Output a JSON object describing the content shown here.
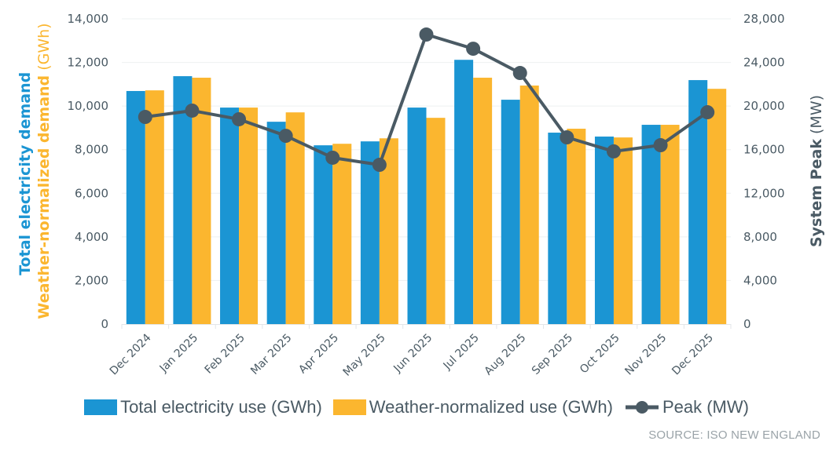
{
  "chart_data": {
    "type": "bar",
    "title": "",
    "categories": [
      "Dec 2024",
      "Jan 2025",
      "Feb 2025",
      "Mar 2025",
      "Apr 2025",
      "May 2025",
      "Jun 2025",
      "Jul 2025",
      "Aug 2025",
      "Sep 2025",
      "Oct 2025",
      "Nov 2025",
      "Dec 2025"
    ],
    "series": [
      {
        "name": "Total electricity use (GWh)",
        "type": "bar",
        "axis": "left",
        "color": "#1b95d3",
        "values": [
          10690,
          11370,
          9930,
          9280,
          8200,
          8380,
          9930,
          12120,
          10290,
          8780,
          8600,
          9140,
          11190
        ]
      },
      {
        "name": "Weather-normalized use (GWh)",
        "type": "bar",
        "axis": "left",
        "color": "#fbb62f",
        "values": [
          10720,
          11300,
          9930,
          9710,
          8270,
          8520,
          9460,
          11300,
          10940,
          8960,
          8560,
          9140,
          10790
        ]
      },
      {
        "name": "Peak (MW)",
        "type": "line",
        "axis": "right",
        "color": "#4a5a64",
        "values": [
          19000,
          19580,
          18790,
          17270,
          15260,
          14610,
          26560,
          25260,
          23030,
          17130,
          15840,
          16410,
          19430
        ]
      }
    ],
    "y_left": {
      "label_part1": "Total electricity demand",
      "label_part2": "Weather-normalized demand",
      "label_unit": " (GWh)",
      "ylim": [
        0,
        14000
      ],
      "ticks": [
        0,
        2000,
        4000,
        6000,
        8000,
        10000,
        12000,
        14000
      ],
      "tick_labels": [
        "0",
        "2,000",
        "4,000",
        "6,000",
        "8,000",
        "10,000",
        "12,000",
        "14,000"
      ]
    },
    "y_right": {
      "label_main": "System Peak",
      "label_unit": " (MW)",
      "ylim": [
        0,
        28000
      ],
      "ticks": [
        0,
        4000,
        8000,
        12000,
        16000,
        20000,
        24000,
        28000
      ],
      "tick_labels": [
        "0",
        "4,000",
        "8,000",
        "12,000",
        "16,000",
        "20,000",
        "24,000",
        "28,000"
      ]
    },
    "xlabel": "",
    "grid": true,
    "legend_position": "bottom"
  },
  "legend": {
    "items": [
      {
        "label": "Total electricity use (GWh)",
        "color": "#1b95d3"
      },
      {
        "label": "Weather-normalized use (GWh)",
        "color": "#fbb62f"
      },
      {
        "label": "Peak (MW)",
        "color": "#4a5a64"
      }
    ]
  },
  "source": "SOURCE: ISO NEW ENGLAND"
}
